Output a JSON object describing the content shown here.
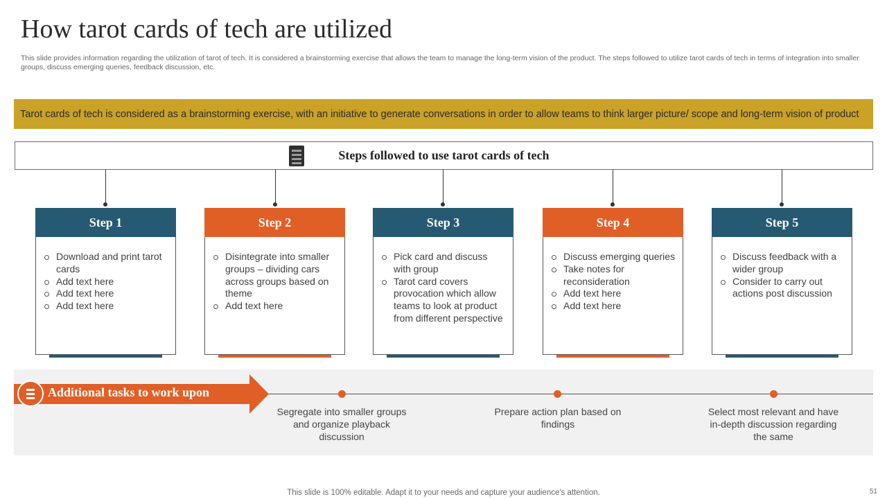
{
  "title": "How tarot cards of tech are utilized",
  "subtitle": "This slide provides information regarding the utilization of tarot of tech. It is considered a brainstorming exercise that allows the team to manage the long-term vision of the product. The steps followed to utilize tarot cards of tech in terms of integration into smaller groups, discuss emerging queries, feedback discussion, etc.",
  "banner": "Tarot cards of tech is considered as a brainstorming exercise, with an initiative to generate conversations in order to allow teams to think larger picture/ scope and long-term vision of product",
  "steps_header": {
    "icon": "checklist-icon",
    "title": "Steps followed to use tarot cards of tech"
  },
  "colors": {
    "blue": "#265a73",
    "orange": "#e05f27",
    "gold": "#c9a227",
    "panel": "#f1f1f1"
  },
  "steps": [
    {
      "label": "Step 1",
      "color": "blue",
      "items": [
        "Download and print tarot cards",
        "Add text here",
        "Add text here",
        "Add text here"
      ]
    },
    {
      "label": "Step 2",
      "color": "orange",
      "items": [
        "Disintegrate into smaller groups – dividing cars across groups based on theme",
        "Add text here"
      ]
    },
    {
      "label": "Step 3",
      "color": "blue",
      "items": [
        "Pick card and discuss with group",
        "Tarot card covers provocation which allow teams to look at product from different perspective"
      ]
    },
    {
      "label": "Step 4",
      "color": "orange",
      "items": [
        "Discuss emerging queries",
        "Take notes for reconsideration",
        "Add text here",
        "Add text here"
      ]
    },
    {
      "label": "Step 5",
      "color": "blue",
      "items": [
        "Discuss feedback with a wider group",
        "Consider to carry out actions post discussion"
      ]
    }
  ],
  "tasks": {
    "icon": "task-list-icon",
    "title": "Additional tasks to work upon",
    "items": [
      "Segregate into smaller groups and organize playback discussion",
      "Prepare action plan based on findings",
      "Select most relevant and have in-depth discussion regarding the same"
    ]
  },
  "footer": "This slide is 100% editable. Adapt it to your needs and capture your audience's attention.",
  "page_number": "51"
}
